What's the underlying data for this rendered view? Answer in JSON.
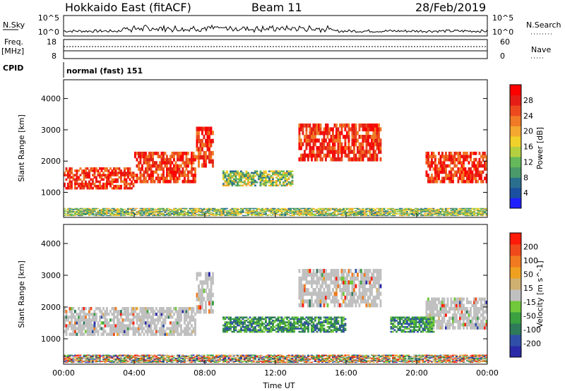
{
  "header": {
    "station": "Hokkaido East (fitACF)",
    "beam": "Beam 11",
    "date": "28/Feb/2019"
  },
  "top_panels": {
    "nsky_label": "N.Sky",
    "nsky_ticks": [
      "10^5",
      "10^0"
    ],
    "nsearch_label": "N.Search",
    "nsearch_ticks": [
      "10^5",
      "10^0"
    ],
    "freq_label": "Freq.",
    "freq_unit": "[MHz]",
    "freq_ticks": [
      "18",
      "8"
    ],
    "nave_label": "Nave",
    "nave_ticks": [
      "60",
      "0"
    ],
    "cpid_label": "CPID",
    "cpid_text": "normal (fast) 151"
  },
  "colors": {
    "power_scale": [
      "#2020ff",
      "#1b4fa0",
      "#2b6f8f",
      "#4a9a6a",
      "#66b85a",
      "#b4d040",
      "#f0d02a",
      "#f4a830",
      "#f07a26",
      "#ec4a1e",
      "#e41e16",
      "#ff0000"
    ],
    "velocity_scale": [
      "#2a2aa8",
      "#3050a8",
      "#2f7a5a",
      "#3aa040",
      "#70c83a",
      "#c0c0c0",
      "#d0b070",
      "#f0a020",
      "#f07a20",
      "#ef4a1c",
      "#ff1a0a"
    ]
  },
  "chart_data": [
    {
      "type": "heatmap",
      "title": "Power",
      "xlabel": "Time UT",
      "ylabel": "Slant Range [km]",
      "x_ticks": [
        "00:00",
        "04:00",
        "08:00",
        "12:00",
        "16:00",
        "20:00",
        "00:00"
      ],
      "xlim": [
        0,
        24
      ],
      "ylim": [
        200,
        4600
      ],
      "y_ticks": [
        "4000",
        "3000",
        "2000",
        "1000"
      ],
      "colorbar": {
        "label": "Power [dB]",
        "ticks": [
          "28",
          "24",
          "20",
          "16",
          "12",
          "8",
          "4"
        ],
        "range": [
          0,
          30
        ]
      },
      "features": [
        {
          "t0": 0.0,
          "t1": 4.0,
          "r0": 1100,
          "r1": 1800,
          "level": "high"
        },
        {
          "t0": 4.0,
          "t1": 7.5,
          "r0": 1300,
          "r1": 2300,
          "level": "high"
        },
        {
          "t0": 7.5,
          "t1": 8.5,
          "r0": 1800,
          "r1": 3100,
          "level": "high"
        },
        {
          "t0": 13.3,
          "t1": 18.0,
          "r0": 2000,
          "r1": 3200,
          "level": "high"
        },
        {
          "t0": 20.5,
          "t1": 24.0,
          "r0": 1300,
          "r1": 2300,
          "level": "high"
        },
        {
          "t0": 9.0,
          "t1": 13.0,
          "r0": 1200,
          "r1": 1700,
          "level": "low"
        },
        {
          "t0": 0.0,
          "t1": 24.0,
          "r0": 250,
          "r1": 500,
          "level": "low"
        }
      ]
    },
    {
      "type": "heatmap",
      "title": "Velocity",
      "xlabel": "Time UT",
      "ylabel": "Slant Range [km]",
      "x_ticks": [
        "00:00",
        "04:00",
        "08:00",
        "12:00",
        "16:00",
        "20:00",
        "00:00"
      ],
      "xlim": [
        0,
        24
      ],
      "ylim": [
        200,
        4600
      ],
      "y_ticks": [
        "4000",
        "3000",
        "2000",
        "1000"
      ],
      "colorbar": {
        "label": "Velocity [m s^-1]",
        "ticks": [
          "200",
          "100",
          "50",
          "15",
          "-15",
          "-50",
          "-100",
          "-200"
        ],
        "range": [
          -250,
          250
        ]
      },
      "features": [
        {
          "t0": 0.0,
          "t1": 7.5,
          "r0": 1100,
          "r1": 2000,
          "level": "ground"
        },
        {
          "t0": 7.5,
          "t1": 8.5,
          "r0": 1800,
          "r1": 3100,
          "level": "ground"
        },
        {
          "t0": 13.3,
          "t1": 18.0,
          "r0": 2000,
          "r1": 3200,
          "level": "ground"
        },
        {
          "t0": 20.5,
          "t1": 24.0,
          "r0": 1300,
          "r1": 2300,
          "level": "ground"
        },
        {
          "t0": 9.0,
          "t1": 16.0,
          "r0": 1200,
          "r1": 1700,
          "level": "positive"
        },
        {
          "t0": 18.5,
          "t1": 21.0,
          "r0": 1200,
          "r1": 1700,
          "level": "positive"
        },
        {
          "t0": 0.0,
          "t1": 24.0,
          "r0": 250,
          "r1": 500,
          "level": "mixed"
        }
      ]
    }
  ]
}
